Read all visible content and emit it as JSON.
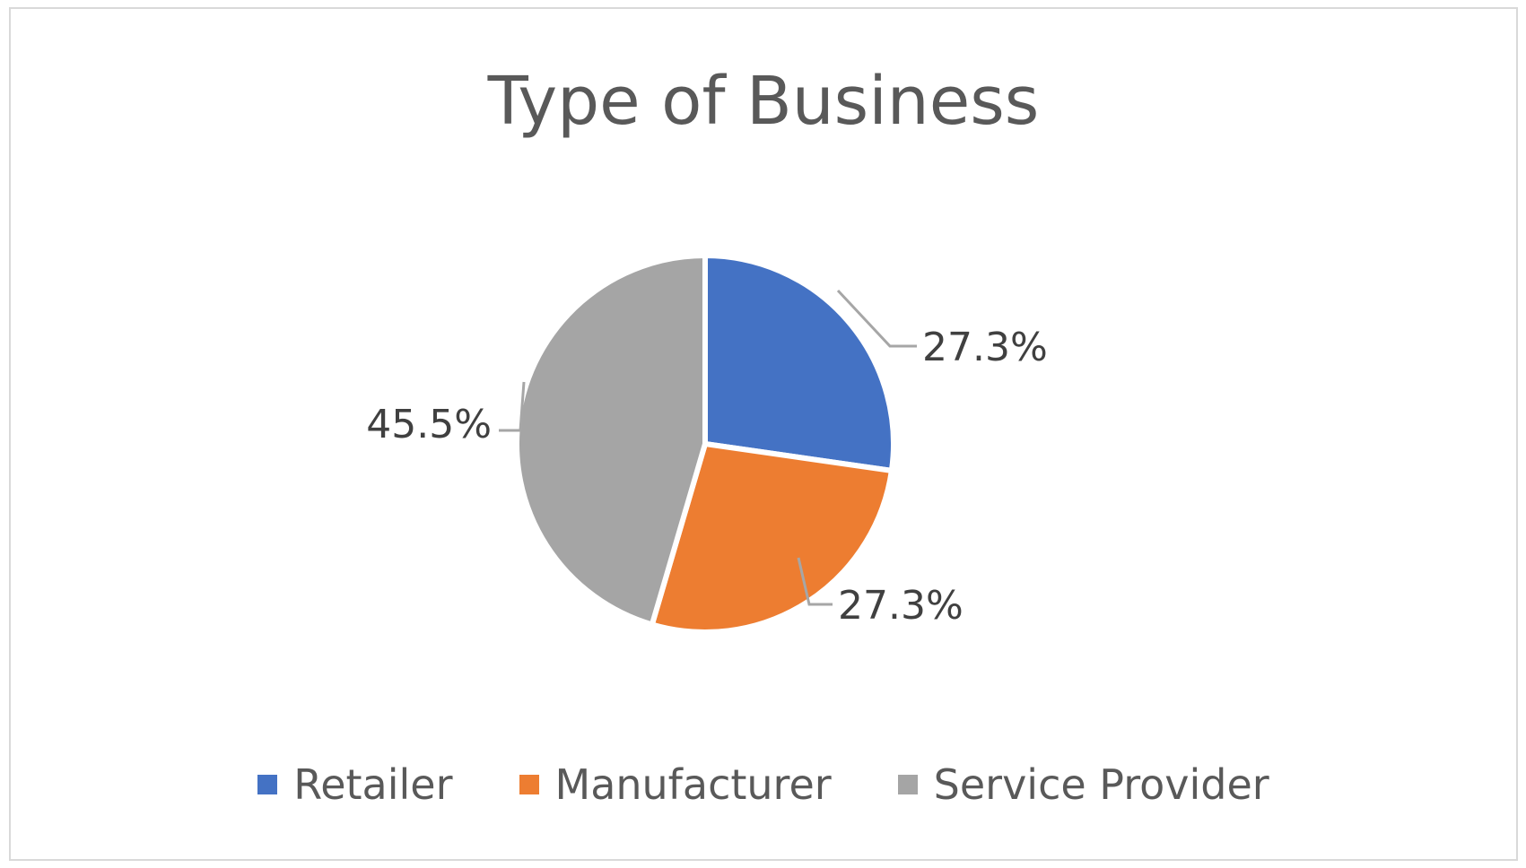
{
  "chart_data": {
    "type": "pie",
    "title": "Type of Business",
    "categories": [
      "Retailer",
      "Manufacturer",
      "Service Provider"
    ],
    "values": [
      27.3,
      27.3,
      45.5
    ],
    "labels": [
      "27.3%",
      "27.3%",
      "45.5%"
    ],
    "colors": [
      "#4472c4",
      "#ed7d31",
      "#a5a5a5"
    ],
    "legend": "bottom"
  }
}
